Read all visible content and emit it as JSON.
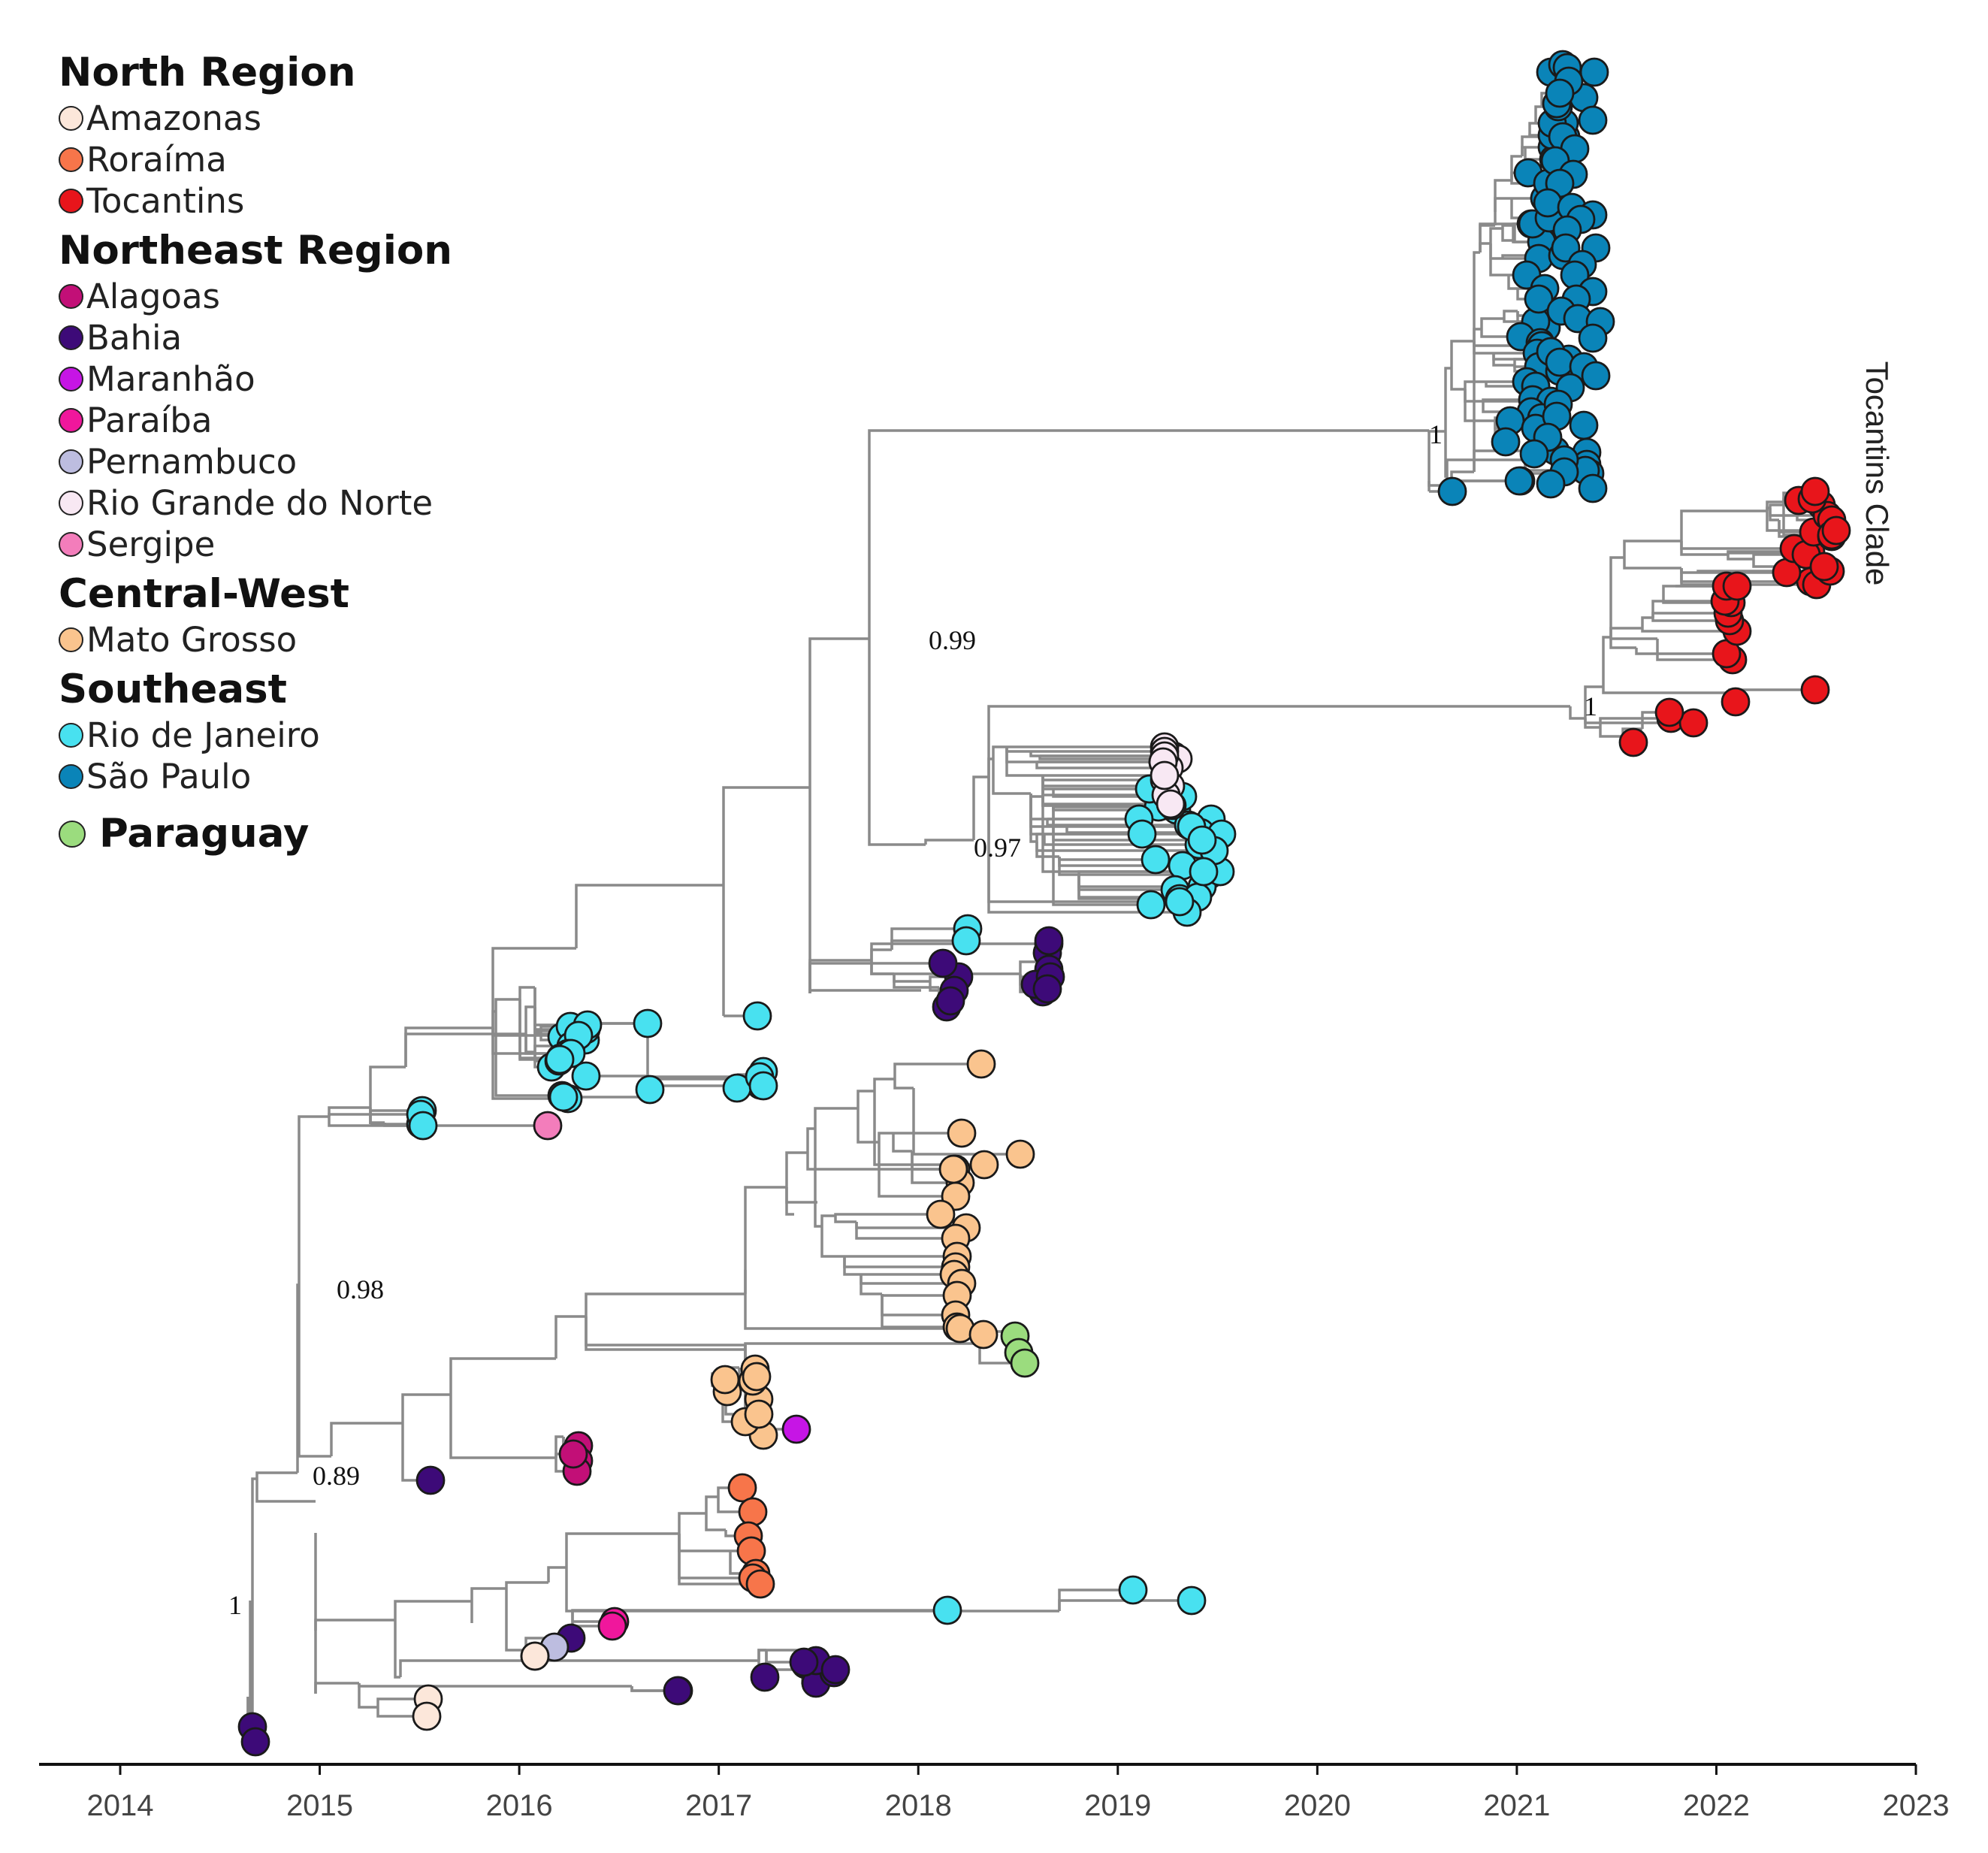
{
  "legend": [
    {
      "title": "North Region",
      "items": [
        {
          "key": "amazonas",
          "label": "Amazonas"
        },
        {
          "key": "roraima",
          "label": "Roraíma"
        },
        {
          "key": "tocantins",
          "label": "Tocantins"
        }
      ]
    },
    {
      "title": "Northeast Region",
      "items": [
        {
          "key": "alagoas",
          "label": "Alagoas"
        },
        {
          "key": "bahia",
          "label": "Bahia"
        },
        {
          "key": "maranhao",
          "label": "Maranhão"
        },
        {
          "key": "paraiba",
          "label": "Paraíba"
        },
        {
          "key": "pernambuco",
          "label": "Pernambuco"
        },
        {
          "key": "rgn",
          "label": "Rio Grande do Norte"
        },
        {
          "key": "sergipe",
          "label": "Sergipe"
        }
      ]
    },
    {
      "title": "Central-West",
      "items": [
        {
          "key": "matogrosso",
          "label": "Mato Grosso"
        }
      ]
    },
    {
      "title": "Southeast",
      "items": [
        {
          "key": "riodejaneiro",
          "label": "Rio de Janeiro"
        },
        {
          "key": "saopaulo",
          "label": "São Paulo"
        }
      ]
    }
  ],
  "paraguay": {
    "key": "paraguay",
    "label": "Paraguay"
  },
  "colors": {
    "amazonas": "#FCE7DA",
    "roraima": "#F7754A",
    "tocantins": "#E8151B",
    "alagoas": "#C20F77",
    "bahia": "#3D0A78",
    "maranhao": "#C615E5",
    "paraiba": "#F0179C",
    "pernambuco": "#BDBDE0",
    "rgn": "#F8E8F3",
    "sergipe": "#F37DBB",
    "matogrosso": "#FAC48E",
    "riodejaneiro": "#48E1F0",
    "saopaulo": "#0A84B8",
    "paraguay": "#9BDC7E"
  },
  "axis": {
    "ticks": [
      "2014",
      "2015",
      "2016",
      "2017",
      "2018",
      "2019",
      "2020",
      "2021",
      "2022",
      "2023"
    ],
    "tick_values": [
      2014,
      2015,
      2016,
      2017,
      2018,
      2019,
      2020,
      2021,
      2022,
      2023
    ],
    "domain": [
      2013.6,
      2023
    ]
  },
  "support_values": [
    "1",
    "0.99",
    "0.97",
    "1",
    "0.98",
    "0.89",
    "1"
  ],
  "clade_label": "Tocantins Clade"
}
